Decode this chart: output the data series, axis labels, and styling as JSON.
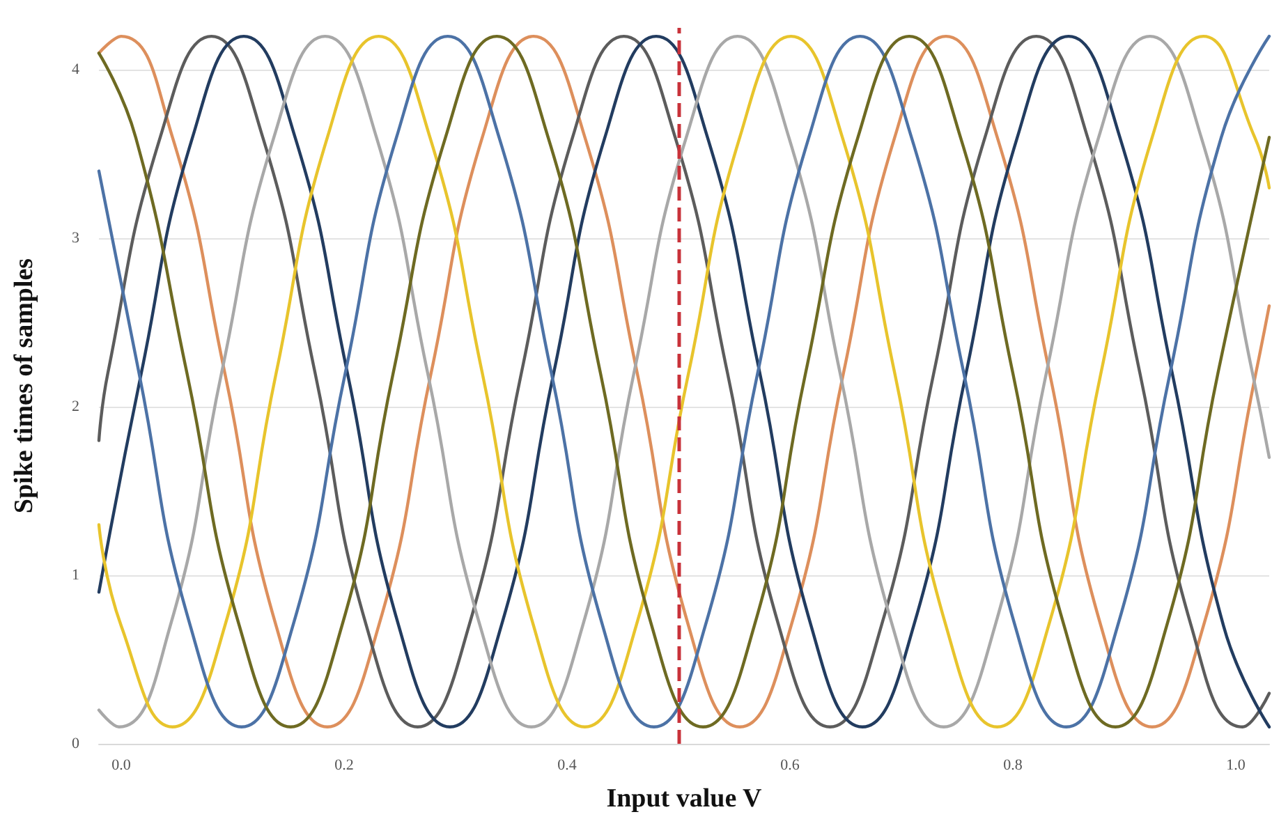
{
  "chart_data": {
    "type": "line",
    "xlabel": "Input value V",
    "ylabel": "Spike times of samples",
    "xlim": [
      -0.02,
      1.03
    ],
    "ylim": [
      0,
      4.25
    ],
    "xticks": [
      {
        "value": 0,
        "label": "0.0"
      },
      {
        "value": 0.2,
        "label": "0.2"
      },
      {
        "value": 0.4,
        "label": "0.4"
      },
      {
        "value": 0.6,
        "label": "0.6"
      },
      {
        "value": 0.8,
        "label": "0.8"
      },
      {
        "value": 1,
        "label": "1.0"
      }
    ],
    "yticks": [
      0,
      1,
      2,
      3,
      4
    ],
    "grid": "y",
    "ref_lines": [
      {
        "axis": "x",
        "value": 0.5,
        "color": "#c8323a",
        "line_style": "dashed"
      }
    ],
    "series": [
      {
        "color": "#dd8f5c",
        "x": [
          -0.02,
          0,
          0.046,
          0.093,
          0.139,
          0.185,
          0.231,
          0.278,
          0.324,
          0.37,
          0.416,
          0.463,
          0.509,
          0.555,
          0.601,
          0.648,
          0.694,
          0.74,
          0.786,
          0.833,
          0.879,
          0.925,
          0.971,
          1.018,
          1.03
        ],
        "values": [
          4.1,
          4.2,
          3.6,
          2.2,
          0.7,
          0.1,
          0.7,
          2.2,
          3.6,
          4.2,
          3.6,
          2.2,
          0.7,
          0.1,
          0.7,
          2.2,
          3.6,
          4.2,
          3.6,
          2.2,
          0.7,
          0.1,
          0.7,
          2.2,
          2.6
        ]
      },
      {
        "color": "#5c5c5c",
        "x": [
          -0.02,
          -0.012,
          0.035,
          0.081,
          0.127,
          0.174,
          0.22,
          0.266,
          0.312,
          0.359,
          0.405,
          0.451,
          0.497,
          0.544,
          0.59,
          0.636,
          0.682,
          0.729,
          0.775,
          0.821,
          0.867,
          0.914,
          0.96,
          1.006,
          1.03
        ],
        "values": [
          1.8,
          2.2,
          3.6,
          4.2,
          3.6,
          2.2,
          0.7,
          0.1,
          0.7,
          2.2,
          3.6,
          4.2,
          3.6,
          2.2,
          0.7,
          0.1,
          0.7,
          2.2,
          3.6,
          4.2,
          3.6,
          2.2,
          0.7,
          0.1,
          0.3
        ]
      },
      {
        "color": "#223c60",
        "x": [
          -0.02,
          0.018,
          0.064,
          0.11,
          0.156,
          0.203,
          0.249,
          0.295,
          0.341,
          0.388,
          0.434,
          0.48,
          0.526,
          0.573,
          0.619,
          0.665,
          0.711,
          0.758,
          0.804,
          0.85,
          0.896,
          0.943,
          0.989,
          1.03
        ],
        "values": [
          0.9,
          2.2,
          3.6,
          4.2,
          3.6,
          2.2,
          0.7,
          0.1,
          0.7,
          2.2,
          3.6,
          4.2,
          3.6,
          2.2,
          0.7,
          0.1,
          0.7,
          2.2,
          3.6,
          4.2,
          3.6,
          2.2,
          0.7,
          0.1
        ]
      },
      {
        "color": "#a8a8a8",
        "x": [
          -0.02,
          -0.002,
          0.044,
          0.09,
          0.137,
          0.183,
          0.229,
          0.275,
          0.322,
          0.368,
          0.414,
          0.46,
          0.507,
          0.553,
          0.599,
          0.645,
          0.692,
          0.738,
          0.784,
          0.83,
          0.877,
          0.923,
          0.969,
          1.015,
          1.03
        ],
        "values": [
          0.2,
          0.1,
          0.7,
          2.2,
          3.6,
          4.2,
          3.6,
          2.2,
          0.7,
          0.1,
          0.7,
          2.2,
          3.6,
          4.2,
          3.6,
          2.2,
          0.7,
          0.1,
          0.7,
          2.2,
          3.6,
          4.2,
          3.6,
          2.2,
          1.7
        ]
      },
      {
        "color": "#e8c42c",
        "x": [
          -0.02,
          0,
          0.046,
          0.093,
          0.139,
          0.185,
          0.231,
          0.277,
          0.324,
          0.37,
          0.416,
          0.462,
          0.509,
          0.555,
          0.601,
          0.647,
          0.694,
          0.74,
          0.786,
          0.832,
          0.879,
          0.925,
          0.971,
          1.017,
          1.03
        ],
        "values": [
          1.3,
          0.7,
          0.1,
          0.7,
          2.2,
          3.6,
          4.2,
          3.6,
          2.2,
          0.7,
          0.1,
          0.7,
          2.2,
          3.6,
          4.2,
          3.6,
          2.2,
          0.7,
          0.1,
          0.7,
          2.2,
          3.6,
          4.2,
          3.6,
          3.3
        ]
      },
      {
        "color": "#4c72a6",
        "x": [
          -0.02,
          0.016,
          0.062,
          0.108,
          0.154,
          0.201,
          0.247,
          0.293,
          0.339,
          0.386,
          0.432,
          0.478,
          0.524,
          0.571,
          0.617,
          0.663,
          0.709,
          0.756,
          0.802,
          0.848,
          0.894,
          0.941,
          0.987,
          1.03
        ],
        "values": [
          3.4,
          2.2,
          0.7,
          0.1,
          0.7,
          2.2,
          3.6,
          4.2,
          3.6,
          2.2,
          0.7,
          0.1,
          0.7,
          2.2,
          3.6,
          4.2,
          3.6,
          2.2,
          0.7,
          0.1,
          0.7,
          2.2,
          3.6,
          4.2
        ]
      },
      {
        "color": "#6e6a22",
        "x": [
          -0.02,
          0.013,
          0.059,
          0.106,
          0.152,
          0.198,
          0.244,
          0.291,
          0.337,
          0.383,
          0.43,
          0.476,
          0.522,
          0.568,
          0.614,
          0.661,
          0.707,
          0.753,
          0.8,
          0.846,
          0.892,
          0.938,
          0.984,
          1.03
        ],
        "values": [
          4.1,
          3.6,
          2.2,
          0.7,
          0.1,
          0.7,
          2.2,
          3.6,
          4.2,
          3.6,
          2.2,
          0.7,
          0.1,
          0.7,
          2.2,
          3.6,
          4.2,
          3.6,
          2.2,
          0.7,
          0.1,
          0.7,
          2.2,
          3.6
        ]
      }
    ]
  }
}
